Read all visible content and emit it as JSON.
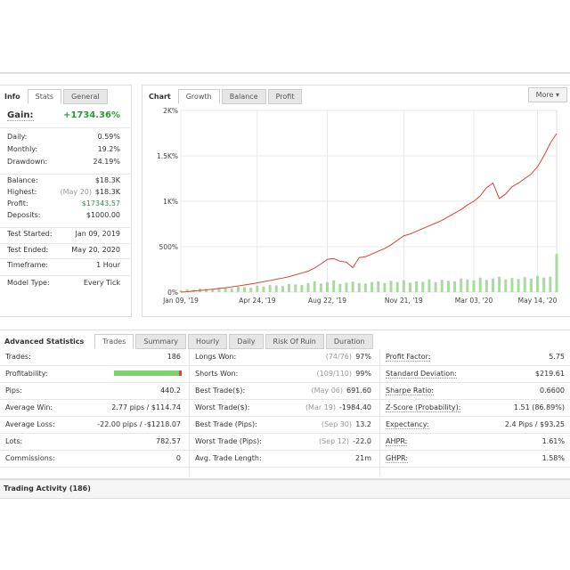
{
  "info": {
    "tabs": [
      "Info",
      "Stats",
      "General"
    ],
    "gain": {
      "label": "Gain:",
      "value": "+1734.36%"
    },
    "rows": [
      {
        "label": "Daily:",
        "value": "0.59%"
      },
      {
        "label": "Monthly:",
        "value": "19.2%"
      },
      {
        "label": "Drawdown:",
        "value": "24.19%"
      },
      {
        "label": "Balance:",
        "value": "$18.3K"
      },
      {
        "label": "Highest:",
        "note": "(May 20)",
        "value": "$18.3K"
      },
      {
        "label": "Profit:",
        "value": "$17343.57"
      },
      {
        "label": "Deposits:",
        "value": "$1000.00"
      },
      {
        "label": "Test Started:",
        "value": "Jan 09, 2019"
      },
      {
        "label": "Test Ended:",
        "value": "May 20, 2020"
      },
      {
        "label": "Timeframe:",
        "value": "1 Hour"
      },
      {
        "label": "Model Type:",
        "value": "Every Tick"
      }
    ]
  },
  "chart_panel": {
    "tabs": [
      "Chart",
      "Growth",
      "Balance",
      "Profit"
    ],
    "more": "More"
  },
  "chart_data": {
    "type": "line",
    "grid": true,
    "categories": [
      "Jan 09, '19",
      null,
      null,
      null,
      null,
      null,
      null,
      null,
      null,
      null,
      null,
      null,
      "Apr 24, '19",
      null,
      null,
      null,
      null,
      null,
      null,
      null,
      null,
      null,
      null,
      "Aug 22, '19",
      null,
      null,
      null,
      null,
      null,
      null,
      null,
      null,
      null,
      null,
      null,
      "Nov 21, '19",
      null,
      null,
      null,
      null,
      null,
      null,
      null,
      null,
      null,
      null,
      "Mar 03, '20",
      null,
      null,
      null,
      null,
      null,
      null,
      null,
      null,
      null,
      "May 14, '20",
      null,
      null,
      null
    ],
    "series": [
      {
        "color": "#d9413a",
        "values": [
          0,
          5,
          12,
          18,
          25,
          32,
          40,
          48,
          58,
          68,
          78,
          90,
          102,
          115,
          128,
          142,
          155,
          170,
          190,
          210,
          230,
          265,
          310,
          360,
          370,
          340,
          330,
          270,
          380,
          390,
          420,
          450,
          480,
          520,
          570,
          620,
          640,
          670,
          700,
          730,
          760,
          790,
          830,
          870,
          910,
          960,
          1000,
          1060,
          1150,
          1200,
          1030,
          1080,
          1160,
          1200,
          1250,
          1300,
          1380,
          1500,
          1640,
          1745
        ]
      },
      {
        "type": "bar",
        "color": "#a9dba1",
        "values": [
          20,
          30,
          25,
          40,
          35,
          30,
          50,
          45,
          40,
          60,
          55,
          50,
          70,
          60,
          80,
          75,
          65,
          90,
          85,
          80,
          100,
          120,
          95,
          110,
          130,
          90,
          105,
          115,
          100,
          95,
          110,
          120,
          100,
          125,
          110,
          130,
          105,
          120,
          115,
          140,
          110,
          135,
          125,
          120,
          150,
          140,
          130,
          160,
          135,
          150,
          170,
          140,
          155,
          145,
          165,
          150,
          180,
          160,
          170,
          420
        ]
      }
    ],
    "ylim": [
      0,
      2000
    ],
    "yticks": [
      {
        "value": 0,
        "label": "0%"
      },
      {
        "value": 500,
        "label": "500%"
      },
      {
        "value": 1000,
        "label": "1K%"
      },
      {
        "value": 1500,
        "label": "1.5K%"
      },
      {
        "value": 2000,
        "label": "2K%"
      }
    ]
  },
  "stats": {
    "title": "Advanced Statistics",
    "tabs": [
      "Trades",
      "Summary",
      "Hourly",
      "Daily",
      "Risk Of Ruin",
      "Duration"
    ],
    "columns": [
      [
        {
          "label": "Trades:",
          "value": "186"
        },
        {
          "label": "Profitability:"
        },
        {
          "label": "Pips:",
          "value": "440.2"
        },
        {
          "label": "Average Win:",
          "value": "2.77 pips / $114.74"
        },
        {
          "label": "Average Loss:",
          "value": "-22.00 pips / -$1218.07"
        },
        {
          "label": "Lots:",
          "value": "782.57"
        },
        {
          "label": "Commissions:",
          "value": "0"
        }
      ],
      [
        {
          "label": "Longs Won:",
          "note": "(74/76)",
          "value": "97%"
        },
        {
          "label": "Shorts Won:",
          "note": "(109/110)",
          "value": "99%"
        },
        {
          "label": "Best Trade($):",
          "note": "(May 06)",
          "value": "691.60"
        },
        {
          "label": "Worst Trade($):",
          "note": "(Mar 19)",
          "value": "-1984.40"
        },
        {
          "label": "Best Trade (Pips):",
          "note": "(Sep 30)",
          "value": "13.2"
        },
        {
          "label": "Worst Trade (Pips):",
          "note": "(Sep 12)",
          "value": "-22.0"
        },
        {
          "label": "Avg. Trade Length:",
          "value": "21m"
        }
      ],
      [
        {
          "label": "Profit Factor:",
          "value": "5.75"
        },
        {
          "label": "Standard Deviation:",
          "value": "$219.61"
        },
        {
          "label": "Sharpe Ratio:",
          "value": "0.6600"
        },
        {
          "label": "Z-Score (Probability):",
          "value": "1.51 (86.89%)"
        },
        {
          "label": "Expectancy:",
          "value": "2.4 Pips / $93.25"
        },
        {
          "label": "AHPR:",
          "value": "1.61%"
        },
        {
          "label": "GHPR:",
          "value": "1.58%"
        }
      ]
    ]
  },
  "activity": {
    "title": "Trading Activity (186)"
  }
}
